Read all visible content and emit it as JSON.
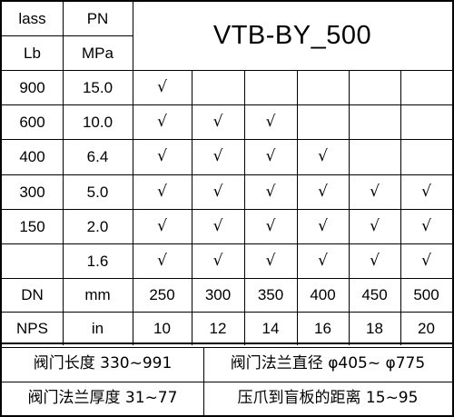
{
  "header": {
    "class_label": "lass",
    "class_unit": "Lb",
    "pn_label": "PN",
    "pn_unit": "MPa",
    "model": "VTB-BY_500"
  },
  "check_mark": "√",
  "pressure_rows": [
    {
      "class": "900",
      "pn": "15.0",
      "checks": [
        true,
        false,
        false,
        false,
        false,
        false
      ]
    },
    {
      "class": "600",
      "pn": "10.0",
      "checks": [
        true,
        true,
        true,
        false,
        false,
        false
      ]
    },
    {
      "class": "400",
      "pn": "6.4",
      "checks": [
        true,
        true,
        true,
        true,
        false,
        false
      ]
    },
    {
      "class": "300",
      "pn": "5.0",
      "checks": [
        true,
        true,
        true,
        true,
        true,
        true
      ]
    },
    {
      "class": "150",
      "pn": "2.0",
      "checks": [
        true,
        true,
        true,
        true,
        true,
        true
      ]
    },
    {
      "class": "",
      "pn": "1.6",
      "checks": [
        true,
        true,
        true,
        true,
        true,
        true
      ]
    }
  ],
  "dn_row": {
    "label": "DN",
    "unit": "mm",
    "values": [
      "250",
      "300",
      "350",
      "400",
      "450",
      "500"
    ]
  },
  "nps_row": {
    "label": "NPS",
    "unit": "in",
    "values": [
      "10",
      "12",
      "14",
      "16",
      "18",
      "20"
    ]
  },
  "footer": {
    "valve_length": "阀门长度 330~991",
    "flange_diameter": "阀门法兰直径 φ405~ φ775",
    "flange_thickness": "阀门法兰厚度 31~77",
    "claw_distance": "压爪到盲板的距离 15~95"
  }
}
